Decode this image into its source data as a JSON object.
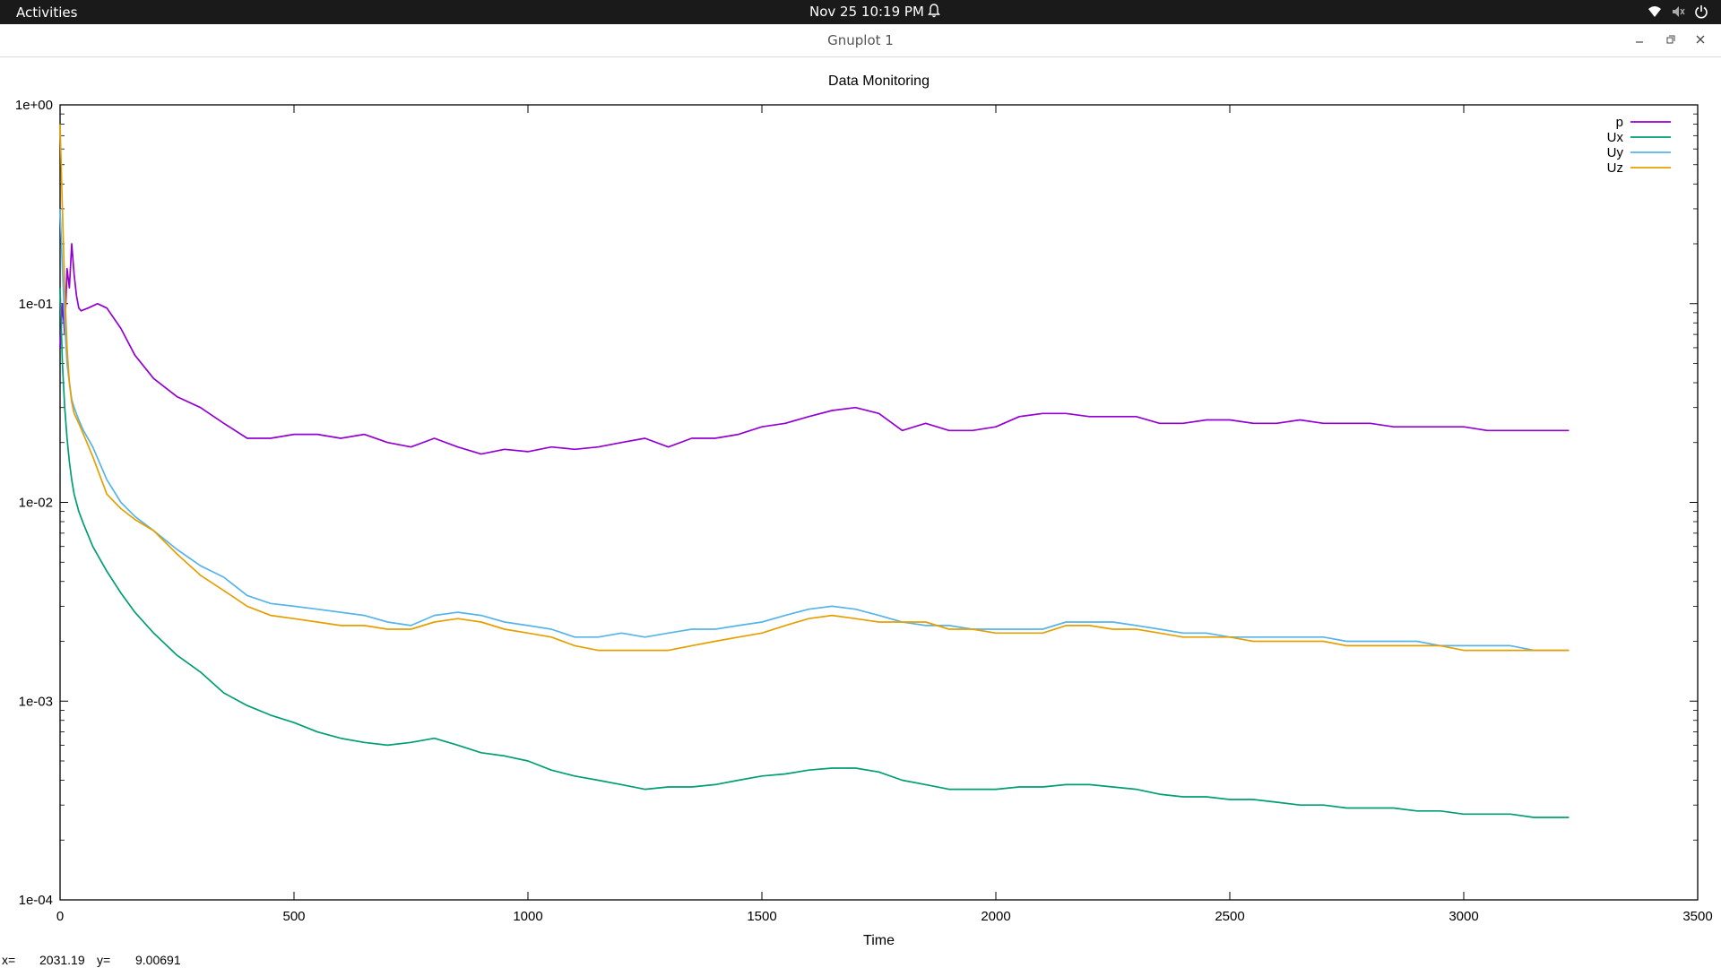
{
  "topbar": {
    "activities": "Activities",
    "clock": "Nov 25  10:19 PM",
    "icons": [
      "bell-icon",
      "wifi-icon",
      "volume-muted-icon",
      "power-icon"
    ]
  },
  "window": {
    "title": "Gnuplot 1",
    "buttons": [
      "minimize-icon",
      "restore-icon",
      "close-icon"
    ]
  },
  "statusbar": {
    "x_label": "x=",
    "x_value": "2031.19",
    "y_label": "y=",
    "y_value": "9.00691"
  },
  "chart_data": {
    "type": "line",
    "title": "Data Monitoring",
    "xlabel": "Time",
    "ylabel": "",
    "xlim": [
      0,
      3500
    ],
    "ylim": [
      0.0001,
      1
    ],
    "yscale": "log",
    "x_ticks": [
      0,
      500,
      1000,
      1500,
      2000,
      2500,
      3000,
      3500
    ],
    "x_tick_labels": [
      "0",
      "500",
      "1000",
      "1500",
      "2000",
      "2500",
      "3000",
      "3500"
    ],
    "y_ticks": [
      1,
      0.1,
      0.01,
      0.001,
      0.0001
    ],
    "y_tick_labels": [
      "1e+00",
      "1e-01",
      "1e-02",
      "1e-03",
      "1e-04"
    ],
    "grid": false,
    "legend_position": "top-right",
    "series": [
      {
        "name": "p",
        "color": "#9400d3",
        "x": [
          0,
          5,
          10,
          15,
          20,
          25,
          30,
          35,
          40,
          45,
          50,
          60,
          80,
          100,
          130,
          160,
          200,
          250,
          300,
          350,
          400,
          450,
          500,
          550,
          600,
          650,
          700,
          750,
          800,
          850,
          900,
          950,
          1000,
          1050,
          1100,
          1150,
          1200,
          1250,
          1300,
          1350,
          1400,
          1450,
          1500,
          1550,
          1600,
          1650,
          1700,
          1750,
          1800,
          1850,
          1900,
          1950,
          2000,
          2050,
          2100,
          2150,
          2200,
          2250,
          2300,
          2350,
          2400,
          2450,
          2500,
          2550,
          2600,
          2650,
          2700,
          2750,
          2800,
          2850,
          2900,
          2950,
          3000,
          3050,
          3100,
          3150,
          3200,
          3225
        ],
        "y": [
          0.06,
          0.1,
          0.07,
          0.15,
          0.12,
          0.2,
          0.14,
          0.11,
          0.095,
          0.092,
          0.093,
          0.095,
          0.1,
          0.095,
          0.075,
          0.055,
          0.042,
          0.034,
          0.03,
          0.025,
          0.021,
          0.021,
          0.022,
          0.022,
          0.021,
          0.022,
          0.02,
          0.019,
          0.021,
          0.019,
          0.0175,
          0.0185,
          0.018,
          0.019,
          0.0185,
          0.019,
          0.02,
          0.021,
          0.019,
          0.021,
          0.021,
          0.022,
          0.024,
          0.025,
          0.027,
          0.029,
          0.03,
          0.028,
          0.023,
          0.025,
          0.023,
          0.023,
          0.024,
          0.027,
          0.028,
          0.028,
          0.027,
          0.027,
          0.027,
          0.025,
          0.025,
          0.026,
          0.026,
          0.025,
          0.025,
          0.026,
          0.025,
          0.025,
          0.025,
          0.024,
          0.024,
          0.024,
          0.024,
          0.023,
          0.023,
          0.023,
          0.023,
          0.023
        ]
      },
      {
        "name": "Ux",
        "color": "#009e73",
        "x": [
          0,
          5,
          10,
          15,
          20,
          25,
          30,
          40,
          50,
          70,
          100,
          130,
          160,
          200,
          250,
          300,
          350,
          400,
          450,
          500,
          550,
          600,
          650,
          700,
          750,
          800,
          850,
          900,
          950,
          1000,
          1050,
          1100,
          1150,
          1200,
          1250,
          1300,
          1350,
          1400,
          1450,
          1500,
          1550,
          1600,
          1650,
          1700,
          1750,
          1800,
          1850,
          1900,
          1950,
          2000,
          2050,
          2100,
          2150,
          2200,
          2250,
          2300,
          2350,
          2400,
          2450,
          2500,
          2550,
          2600,
          2650,
          2700,
          2750,
          2800,
          2850,
          2900,
          2950,
          3000,
          3050,
          3100,
          3150,
          3200,
          3225
        ],
        "y": [
          0.12,
          0.05,
          0.03,
          0.021,
          0.016,
          0.013,
          0.011,
          0.009,
          0.0078,
          0.006,
          0.0045,
          0.0035,
          0.0028,
          0.0022,
          0.0017,
          0.0014,
          0.0011,
          0.00095,
          0.00085,
          0.00078,
          0.0007,
          0.00065,
          0.00062,
          0.0006,
          0.00062,
          0.00065,
          0.0006,
          0.00055,
          0.00053,
          0.0005,
          0.00045,
          0.00042,
          0.0004,
          0.00038,
          0.00036,
          0.00037,
          0.00037,
          0.00038,
          0.0004,
          0.00042,
          0.00043,
          0.00045,
          0.00046,
          0.00046,
          0.00044,
          0.0004,
          0.00038,
          0.00036,
          0.00036,
          0.00036,
          0.00037,
          0.00037,
          0.00038,
          0.00038,
          0.00037,
          0.00036,
          0.00034,
          0.00033,
          0.00033,
          0.00032,
          0.00032,
          0.00031,
          0.0003,
          0.0003,
          0.00029,
          0.00029,
          0.00029,
          0.00028,
          0.00028,
          0.00027,
          0.00027,
          0.00027,
          0.00026,
          0.00026,
          0.00026
        ]
      },
      {
        "name": "Uy",
        "color": "#56b4e9",
        "x": [
          0,
          5,
          10,
          15,
          20,
          25,
          30,
          40,
          50,
          70,
          100,
          130,
          160,
          200,
          250,
          300,
          350,
          400,
          450,
          500,
          550,
          600,
          650,
          700,
          750,
          800,
          850,
          900,
          950,
          1000,
          1050,
          1100,
          1150,
          1200,
          1250,
          1300,
          1350,
          1400,
          1450,
          1500,
          1550,
          1600,
          1650,
          1700,
          1750,
          1800,
          1850,
          1900,
          1950,
          2000,
          2050,
          2100,
          2150,
          2200,
          2250,
          2300,
          2350,
          2400,
          2450,
          2500,
          2550,
          2600,
          2650,
          2700,
          2750,
          2800,
          2850,
          2900,
          2950,
          3000,
          3050,
          3100,
          3150,
          3200,
          3225
        ],
        "y": [
          0.3,
          0.15,
          0.08,
          0.05,
          0.04,
          0.033,
          0.03,
          0.026,
          0.023,
          0.019,
          0.013,
          0.01,
          0.0085,
          0.0072,
          0.0058,
          0.0048,
          0.0042,
          0.0034,
          0.0031,
          0.003,
          0.0029,
          0.0028,
          0.0027,
          0.0025,
          0.0024,
          0.0027,
          0.0028,
          0.0027,
          0.0025,
          0.0024,
          0.0023,
          0.0021,
          0.0021,
          0.0022,
          0.0021,
          0.0022,
          0.0023,
          0.0023,
          0.0024,
          0.0025,
          0.0027,
          0.0029,
          0.003,
          0.0029,
          0.0027,
          0.0025,
          0.0024,
          0.0024,
          0.0023,
          0.0023,
          0.0023,
          0.0023,
          0.0025,
          0.0025,
          0.0025,
          0.0024,
          0.0023,
          0.0022,
          0.0022,
          0.0021,
          0.0021,
          0.0021,
          0.0021,
          0.0021,
          0.002,
          0.002,
          0.002,
          0.002,
          0.0019,
          0.0019,
          0.0019,
          0.0019,
          0.0018,
          0.0018,
          0.0018
        ]
      },
      {
        "name": "Uz",
        "color": "#e69f00",
        "x": [
          0,
          5,
          10,
          15,
          20,
          25,
          30,
          40,
          50,
          70,
          100,
          130,
          160,
          200,
          250,
          300,
          350,
          400,
          450,
          500,
          550,
          600,
          650,
          700,
          750,
          800,
          850,
          900,
          950,
          1000,
          1050,
          1100,
          1150,
          1200,
          1250,
          1300,
          1350,
          1400,
          1450,
          1500,
          1550,
          1600,
          1650,
          1700,
          1750,
          1800,
          1850,
          1900,
          1950,
          2000,
          2050,
          2100,
          2150,
          2200,
          2250,
          2300,
          2350,
          2400,
          2450,
          2500,
          2550,
          2600,
          2650,
          2700,
          2750,
          2800,
          2850,
          2900,
          2950,
          3000,
          3050,
          3100,
          3150,
          3200,
          3225
        ],
        "y": [
          0.8,
          0.3,
          0.12,
          0.06,
          0.04,
          0.032,
          0.028,
          0.025,
          0.022,
          0.017,
          0.011,
          0.0093,
          0.0082,
          0.0072,
          0.0055,
          0.0043,
          0.0036,
          0.003,
          0.0027,
          0.0026,
          0.0025,
          0.0024,
          0.0024,
          0.0023,
          0.0023,
          0.0025,
          0.0026,
          0.0025,
          0.0023,
          0.0022,
          0.0021,
          0.0019,
          0.0018,
          0.0018,
          0.0018,
          0.0018,
          0.0019,
          0.002,
          0.0021,
          0.0022,
          0.0024,
          0.0026,
          0.0027,
          0.0026,
          0.0025,
          0.0025,
          0.0025,
          0.0023,
          0.0023,
          0.0022,
          0.0022,
          0.0022,
          0.0024,
          0.0024,
          0.0023,
          0.0023,
          0.0022,
          0.0021,
          0.0021,
          0.0021,
          0.002,
          0.002,
          0.002,
          0.002,
          0.0019,
          0.0019,
          0.0019,
          0.0019,
          0.0019,
          0.0018,
          0.0018,
          0.0018,
          0.0018,
          0.0018,
          0.0018
        ]
      }
    ]
  }
}
